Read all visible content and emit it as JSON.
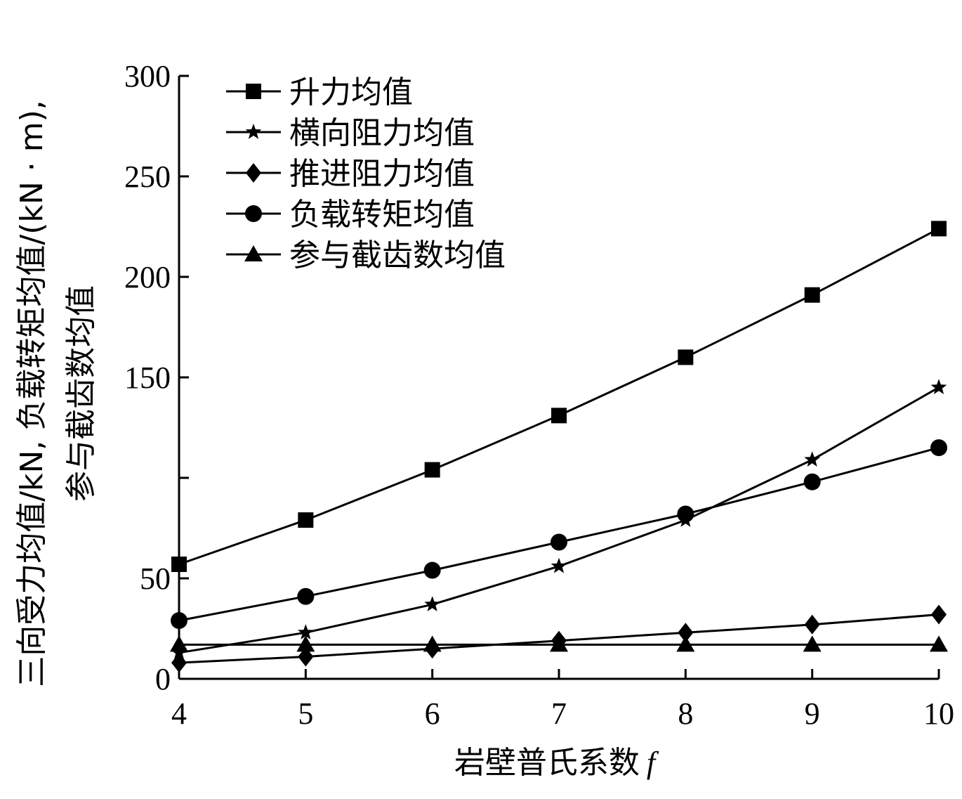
{
  "chart_data": {
    "type": "line",
    "x": [
      4,
      5,
      6,
      7,
      8,
      9,
      10
    ],
    "xlabel": "岩壁普氏系数",
    "xlabel_var": "f",
    "ylabel": [
      "三向受力均值/kN, 负载转矩均值/(kN · m),",
      "参与截齿数均值"
    ],
    "xlim": [
      4,
      10
    ],
    "ylim": [
      0,
      300
    ],
    "xticks": [
      "4",
      "5",
      "6",
      "7",
      "8",
      "9",
      "10"
    ],
    "yticks": [
      "0",
      "50",
      "150",
      "200",
      "250",
      "300"
    ],
    "ytick_values": [
      0,
      50,
      150,
      200,
      250,
      300
    ],
    "legend_position": "top-left",
    "grid": false,
    "series": [
      {
        "name": "升力均值",
        "marker": "square",
        "values": [
          57,
          79,
          104,
          131,
          160,
          191,
          224
        ]
      },
      {
        "name": "横向阻力均值",
        "marker": "star",
        "values": [
          13,
          23,
          37,
          56,
          79,
          109,
          145
        ]
      },
      {
        "name": "推进阻力均值",
        "marker": "diamond",
        "values": [
          8,
          11,
          15,
          19,
          23,
          27,
          32
        ]
      },
      {
        "name": "负载转矩均值",
        "marker": "circle",
        "values": [
          29,
          41,
          54,
          68,
          82,
          98,
          115
        ]
      },
      {
        "name": "参与截齿数均值",
        "marker": "triangle",
        "values": [
          17,
          17,
          17,
          17,
          17,
          17,
          17
        ]
      }
    ]
  }
}
